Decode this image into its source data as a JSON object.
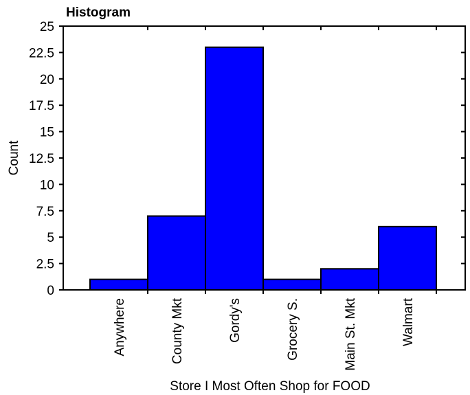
{
  "chart_data": {
    "type": "bar",
    "title": "Histogram",
    "xlabel": "Store I Most Often Shop for FOOD",
    "ylabel": "Count",
    "categories": [
      "Anywhere",
      "County Mkt",
      "Gordy's",
      "Grocery S.",
      "Main St. Mkt",
      "Walmart"
    ],
    "values": [
      1,
      7,
      23,
      1,
      2,
      6
    ],
    "ylim": [
      0,
      25
    ],
    "yticks": [
      "0",
      "2.5",
      "5",
      "7.5",
      "10",
      "12.5",
      "15",
      "17.5",
      "20",
      "22.5",
      "25"
    ],
    "bar_color": "#0000ff",
    "grid": false,
    "legend": "none"
  }
}
